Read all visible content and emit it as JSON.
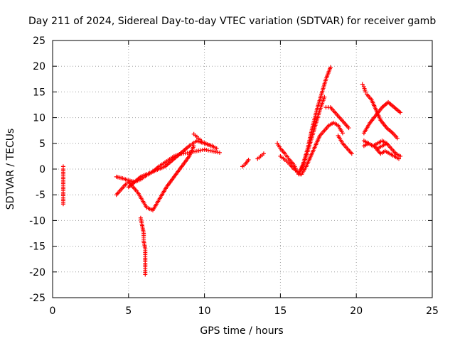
{
  "chart_data": {
    "type": "scatter",
    "title": "Day 211 of 2024, Sidereal Day-to-day VTEC variation (SDTVAR) for receiver gamb",
    "xlabel": "GPS time / hours",
    "ylabel": "SDTVAR / TECUs",
    "xlim": [
      0,
      25
    ],
    "ylim": [
      -25,
      25
    ],
    "xticks": [
      0,
      5,
      10,
      15,
      20,
      25
    ],
    "yticks": [
      -25,
      -20,
      -15,
      -10,
      -5,
      0,
      5,
      10,
      15,
      20,
      25
    ],
    "grid": true,
    "marker": "+",
    "color": "#ff0000",
    "series": [
      {
        "name": "SDTVAR",
        "segments": [
          {
            "x": [
              0.7,
              0.7,
              0.7,
              0.7,
              0.7
            ],
            "y": [
              0.5,
              0.0,
              -2.5,
              -5.5,
              -6.8
            ]
          },
          {
            "x": [
              4.2,
              4.5,
              4.8,
              5.0,
              5.3,
              5.6,
              5.9,
              6.2,
              6.6,
              7.0,
              7.5,
              8.0,
              8.5,
              9.0,
              9.3
            ],
            "y": [
              -5.0,
              -4.0,
              -3.0,
              -2.5,
              -3.5,
              -4.5,
              -6.0,
              -7.5,
              -8.0,
              -6.0,
              -3.5,
              -1.5,
              0.5,
              2.5,
              4.5
            ]
          },
          {
            "x": [
              4.2,
              4.6,
              5.0,
              5.4,
              5.8,
              6.2,
              6.6,
              7.0,
              7.5,
              8.0,
              8.5,
              9.0,
              9.5,
              10.0,
              10.5,
              11.0
            ],
            "y": [
              -1.5,
              -1.8,
              -2.2,
              -2.5,
              -2.0,
              -1.2,
              -0.5,
              0.5,
              1.5,
              2.5,
              3.0,
              3.2,
              3.5,
              3.8,
              3.5,
              3.2
            ]
          },
          {
            "x": [
              5.0,
              5.4,
              5.8,
              6.2,
              6.6,
              7.0,
              7.4,
              7.8,
              8.2,
              8.6,
              9.0,
              9.5,
              10.0,
              10.5
            ],
            "y": [
              -3.5,
              -2.5,
              -1.5,
              -1.0,
              -0.5,
              0.0,
              0.5,
              1.5,
              2.5,
              3.5,
              4.5,
              5.5,
              5.0,
              4.5
            ]
          },
          {
            "x": [
              5.8,
              5.9,
              6.0,
              6.0,
              6.1,
              6.1,
              6.1,
              6.1
            ],
            "y": [
              -9.5,
              -11.0,
              -12.5,
              -14.0,
              -15.5,
              -17.0,
              -19.0,
              -20.5
            ]
          },
          {
            "x": [
              9.3,
              9.6,
              9.9,
              10.2,
              10.5,
              10.8
            ],
            "y": [
              6.8,
              6.0,
              5.2,
              4.8,
              4.5,
              4.0
            ]
          },
          {
            "x": [
              12.5,
              12.7,
              12.9
            ],
            "y": [
              0.5,
              1.0,
              1.8
            ]
          },
          {
            "x": [
              13.5,
              13.7,
              13.9
            ],
            "y": [
              2.0,
              2.5,
              3.0
            ]
          },
          {
            "x": [
              14.8,
              15.0,
              15.3,
              15.6,
              15.9,
              16.1,
              16.3
            ],
            "y": [
              5.0,
              4.0,
              3.0,
              1.8,
              0.8,
              -0.5,
              -1.0
            ]
          },
          {
            "x": [
              15.0,
              15.3,
              15.6,
              15.9,
              16.2
            ],
            "y": [
              2.5,
              1.8,
              1.0,
              0.0,
              -0.8
            ]
          },
          {
            "x": [
              16.2,
              16.5,
              16.8,
              17.1,
              17.4,
              17.7,
              18.0,
              18.3
            ],
            "y": [
              -1.0,
              1.0,
              4.0,
              8.0,
              11.5,
              14.5,
              17.5,
              19.8
            ]
          },
          {
            "x": [
              16.4,
              16.7,
              17.0,
              17.3,
              17.6,
              17.9
            ],
            "y": [
              0.0,
              2.5,
              5.5,
              8.5,
              11.5,
              14.0
            ]
          },
          {
            "x": [
              16.4,
              16.7,
              17.0,
              17.3,
              17.6,
              17.9,
              18.2,
              18.5,
              18.8,
              19.1
            ],
            "y": [
              -1.0,
              0.5,
              2.5,
              4.5,
              6.5,
              7.5,
              8.5,
              9.0,
              8.5,
              7.0
            ]
          },
          {
            "x": [
              18.0,
              18.3,
              18.6,
              18.9,
              19.2,
              19.5
            ],
            "y": [
              12.0,
              12.0,
              11.0,
              10.0,
              9.0,
              8.0
            ]
          },
          {
            "x": [
              18.8,
              19.1,
              19.4,
              19.7
            ],
            "y": [
              6.5,
              5.0,
              4.0,
              3.0
            ]
          },
          {
            "x": [
              20.4,
              20.5,
              20.6
            ],
            "y": [
              16.5,
              16.0,
              15.0
            ]
          },
          {
            "x": [
              20.5,
              20.9,
              21.3,
              21.7,
              22.1,
              22.5,
              22.9
            ],
            "y": [
              7.0,
              9.0,
              10.5,
              12.0,
              13.0,
              12.0,
              11.0
            ]
          },
          {
            "x": [
              20.7,
              21.0,
              21.3,
              21.6,
              22.0,
              22.4,
              22.7
            ],
            "y": [
              14.5,
              13.5,
              11.5,
              9.5,
              8.0,
              7.0,
              6.0
            ]
          },
          {
            "x": [
              20.5,
              20.8,
              21.1,
              21.4,
              21.7,
              22.0,
              22.3,
              22.6,
              22.9
            ],
            "y": [
              4.5,
              5.0,
              4.5,
              4.0,
              4.5,
              5.0,
              4.0,
              3.0,
              2.5
            ]
          },
          {
            "x": [
              20.5,
              20.8,
              21.1,
              21.4,
              21.7,
              22.0
            ],
            "y": [
              5.5,
              5.0,
              4.5,
              5.0,
              5.5,
              5.0
            ]
          },
          {
            "x": [
              21.3,
              21.6,
              21.9,
              22.2,
              22.5,
              22.8
            ],
            "y": [
              4.0,
              3.0,
              3.5,
              3.0,
              2.5,
              2.0
            ]
          }
        ]
      }
    ]
  }
}
